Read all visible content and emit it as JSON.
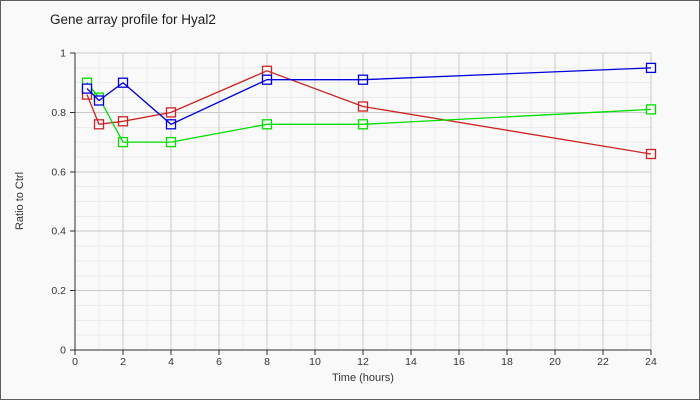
{
  "figure": {
    "background": "#f9f9f9",
    "frame_border": "#5e5e5e"
  },
  "chart_data": {
    "type": "line",
    "title": "Gene array profile for Hyal2",
    "xlabel": "Time (hours)",
    "ylabel": "Ratio to Ctrl",
    "xlim": [
      0,
      24
    ],
    "ylim": [
      0,
      1
    ],
    "grid": true,
    "legend": "none",
    "marker": "open-square",
    "x": [
      0.5,
      1,
      2,
      4,
      8,
      12,
      24
    ],
    "series": [
      {
        "name": "red",
        "color": "#cc2222",
        "values": [
          0.86,
          0.76,
          0.77,
          0.8,
          0.94,
          0.82,
          0.66
        ]
      },
      {
        "name": "green",
        "color": "#00dd00",
        "values": [
          0.9,
          0.85,
          0.7,
          0.7,
          0.76,
          0.76,
          0.81
        ]
      },
      {
        "name": "blue",
        "color": "#0000dd",
        "values": [
          0.88,
          0.84,
          0.9,
          0.76,
          0.91,
          0.91,
          0.95
        ]
      }
    ],
    "x_ticks": [
      {
        "v": 0,
        "label": "0"
      },
      {
        "v": 2,
        "label": "2"
      },
      {
        "v": 4,
        "label": "4"
      },
      {
        "v": 6,
        "label": "6"
      },
      {
        "v": 8,
        "label": "8"
      },
      {
        "v": 10,
        "label": "10"
      },
      {
        "v": 12,
        "label": "12"
      },
      {
        "v": 14,
        "label": "14"
      },
      {
        "v": 16,
        "label": "16"
      },
      {
        "v": 18,
        "label": "18"
      },
      {
        "v": 20,
        "label": "20"
      },
      {
        "v": 22,
        "label": "22"
      },
      {
        "v": 24,
        "label": "24"
      }
    ],
    "y_ticks": [
      {
        "v": 0,
        "label": "0"
      },
      {
        "v": 0.2,
        "label": "0.2"
      },
      {
        "v": 0.4,
        "label": "0.4"
      },
      {
        "v": 0.6,
        "label": "0.6"
      },
      {
        "v": 0.8,
        "label": "0.8"
      },
      {
        "v": 1,
        "label": "1"
      }
    ],
    "x_minor_step": 1,
    "y_minor_step": 0.05,
    "colors": {
      "grid_minor": "#ececec",
      "grid_major": "#c9c9c9",
      "axis": "#2e2e2e",
      "tick_text": "#333333",
      "marker_fill": "#f9f9f9"
    }
  }
}
